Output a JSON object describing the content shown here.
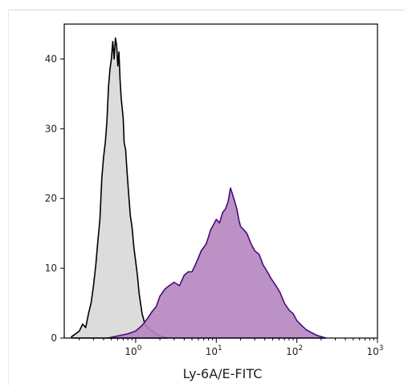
{
  "chart_data": {
    "type": "area",
    "title": "",
    "xlabel": "Ly-6A/E-FITC",
    "ylabel": "",
    "x_scale": "log",
    "xlim": [
      0.13,
      1000
    ],
    "ylim": [
      0,
      45
    ],
    "x_ticks": [
      {
        "value": 1,
        "base": "10",
        "exp": "0"
      },
      {
        "value": 10,
        "base": "10",
        "exp": "1"
      },
      {
        "value": 100,
        "base": "10",
        "exp": "2"
      },
      {
        "value": 1000,
        "base": "10",
        "exp": "3"
      }
    ],
    "y_ticks": [
      "0",
      "10",
      "20",
      "30",
      "40"
    ],
    "grid": false,
    "series": [
      {
        "color_fill": "#dcdcdc",
        "color_line": "#000000",
        "x": [
          0.16,
          0.18,
          0.2,
          0.22,
          0.24,
          0.26,
          0.28,
          0.3,
          0.32,
          0.34,
          0.36,
          0.38,
          0.4,
          0.42,
          0.44,
          0.46,
          0.48,
          0.5,
          0.52,
          0.54,
          0.56,
          0.58,
          0.6,
          0.62,
          0.64,
          0.66,
          0.68,
          0.7,
          0.72,
          0.75,
          0.78,
          0.82,
          0.86,
          0.9,
          0.95,
          1.0,
          1.05,
          1.1,
          1.15,
          1.2,
          1.3,
          1.4,
          1.5,
          1.6,
          1.7,
          1.8,
          1.9,
          2.0,
          2.2,
          2.5
        ],
        "values": [
          0.2,
          0.6,
          1.0,
          2.0,
          1.5,
          3.5,
          5.0,
          7.5,
          10.5,
          14.0,
          17.0,
          23.0,
          26.0,
          28.0,
          31.0,
          36.0,
          38.5,
          40.0,
          42.5,
          40.0,
          43.0,
          42.0,
          39.0,
          41.0,
          37.0,
          34.5,
          33.0,
          31.5,
          28.0,
          27.0,
          24.0,
          20.5,
          17.5,
          16.0,
          13.0,
          11.0,
          9.0,
          6.5,
          5.0,
          3.5,
          2.0,
          1.5,
          1.2,
          1.0,
          0.8,
          0.6,
          0.4,
          0.3,
          0.2,
          0.0
        ]
      },
      {
        "color_fill": "#b585bf",
        "color_line": "#4b0c7a",
        "x": [
          0.45,
          0.6,
          0.8,
          1.0,
          1.2,
          1.4,
          1.6,
          1.8,
          2.0,
          2.3,
          2.6,
          3.0,
          3.5,
          4.0,
          4.5,
          5.0,
          5.5,
          6.0,
          6.5,
          7.0,
          7.5,
          8.0,
          8.5,
          9.0,
          10.0,
          11.0,
          12.0,
          13.0,
          14.0,
          15.0,
          16.0,
          17.0,
          18.0,
          19.0,
          20.0,
          22.0,
          24.0,
          27.0,
          30.0,
          34.0,
          38.0,
          43.0,
          48.0,
          55.0,
          62.0,
          70.0,
          80.0,
          90.0,
          100.0,
          115.0,
          130.0,
          150.0,
          175.0,
          200.0,
          230.0
        ],
        "values": [
          0.0,
          0.3,
          0.6,
          1.0,
          1.8,
          2.8,
          3.8,
          4.5,
          6.0,
          7.0,
          7.5,
          8.0,
          7.5,
          9.0,
          9.5,
          9.5,
          10.5,
          11.5,
          12.5,
          13.0,
          13.5,
          14.5,
          15.5,
          16.0,
          17.0,
          16.5,
          18.0,
          18.5,
          19.5,
          21.5,
          20.5,
          19.5,
          18.5,
          17.0,
          16.0,
          15.5,
          15.0,
          13.5,
          12.5,
          12.0,
          10.5,
          9.5,
          8.5,
          7.5,
          6.5,
          5.0,
          4.0,
          3.5,
          2.5,
          1.8,
          1.2,
          0.8,
          0.4,
          0.2,
          0.0
        ]
      }
    ]
  }
}
